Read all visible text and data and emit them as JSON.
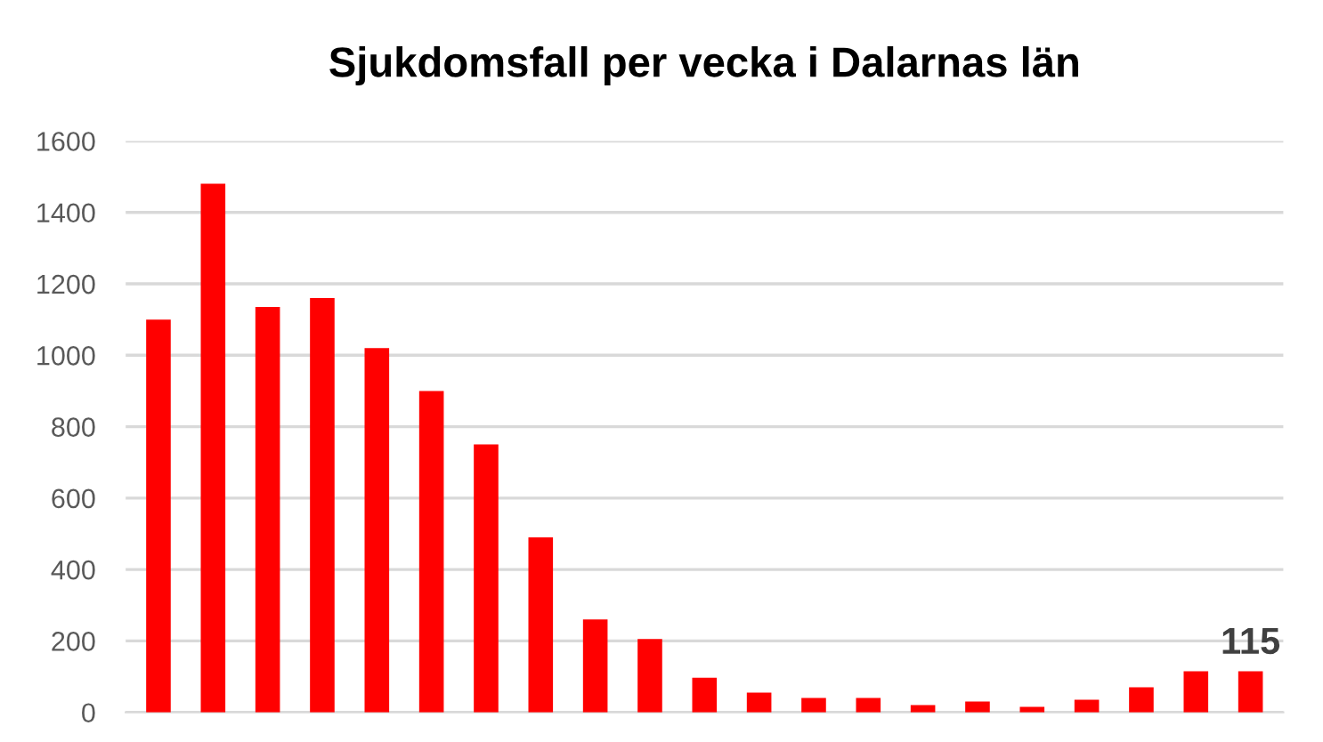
{
  "chart_data": {
    "type": "bar",
    "title": "Sjukdomsfall per vecka i Dalarnas län",
    "categories": [
      null,
      null,
      null,
      null,
      null,
      null,
      null,
      null,
      null,
      null,
      null,
      null,
      null,
      null,
      null,
      null,
      null,
      null,
      null,
      null,
      null
    ],
    "values": [
      1100,
      1480,
      1135,
      1160,
      1020,
      900,
      750,
      490,
      260,
      205,
      97,
      55,
      40,
      40,
      20,
      30,
      15,
      35,
      70,
      115,
      115
    ],
    "value_labels": [
      null,
      null,
      null,
      null,
      null,
      null,
      null,
      null,
      null,
      null,
      null,
      null,
      null,
      null,
      null,
      null,
      null,
      null,
      null,
      null,
      "115"
    ],
    "color": "#ff0000",
    "ylim": [
      0,
      1600
    ],
    "yticks": [
      0,
      200,
      400,
      600,
      800,
      1000,
      1200,
      1400,
      1600
    ],
    "grid": "y"
  }
}
